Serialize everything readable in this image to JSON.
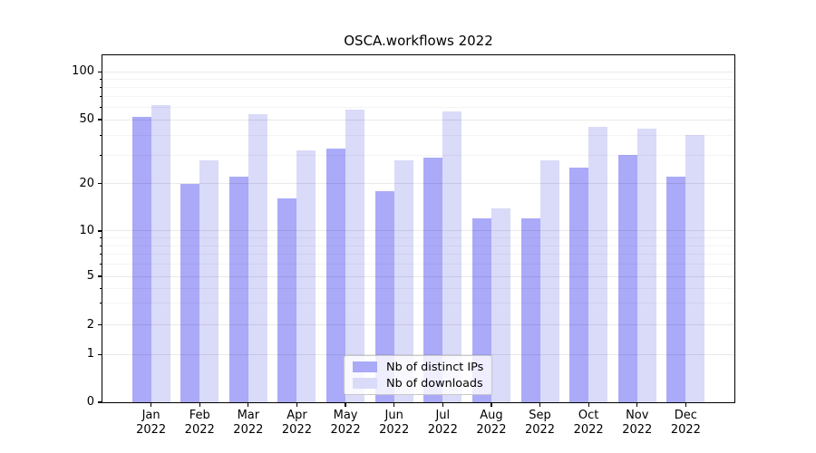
{
  "chart_data": {
    "type": "bar",
    "title": "OSCA.workflows 2022",
    "categories": [
      "Jan",
      "Feb",
      "Mar",
      "Apr",
      "May",
      "Jun",
      "Jul",
      "Aug",
      "Sep",
      "Oct",
      "Nov",
      "Dec"
    ],
    "x_tick_second_line": "2022",
    "series": [
      {
        "name": "Nb of distinct IPs",
        "color": "#aaaaf8",
        "values": [
          52,
          20,
          22,
          16,
          33,
          18,
          29,
          12,
          12,
          25,
          30,
          22
        ]
      },
      {
        "name": "Nb of downloads",
        "color": "#dadaf9",
        "values": [
          62,
          28,
          54,
          32,
          58,
          28,
          56,
          14,
          28,
          45,
          44,
          40
        ]
      }
    ],
    "xlabel": "",
    "ylabel": "",
    "yscale": "symlog",
    "yticks": [
      0,
      1,
      2,
      5,
      10,
      20,
      50,
      100
    ],
    "ylim": [
      0,
      125
    ],
    "grid": true,
    "legend": {
      "position": "lower center",
      "labels": [
        "Nb of distinct IPs",
        "Nb of downloads"
      ]
    }
  }
}
